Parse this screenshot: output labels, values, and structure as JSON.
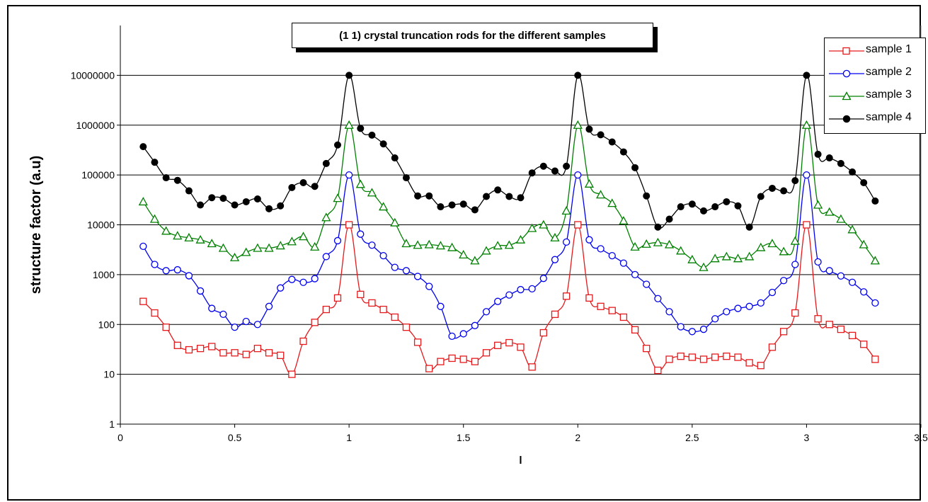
{
  "chart_data": {
    "type": "line",
    "title": "(1 1) crystal truncation rods for the different samples",
    "xlabel": "l",
    "ylabel": "structure factor (a.u)",
    "xlim": [
      0,
      3.5
    ],
    "ylim": [
      1,
      100000000
    ],
    "yscale": "log",
    "x_ticks": [
      "0",
      "0.5",
      "1",
      "1.5",
      "2",
      "2.5",
      "3",
      "3.5"
    ],
    "y_ticks": [
      "1",
      "10",
      "100",
      "1000",
      "10000",
      "100000",
      "1000000",
      "10000000"
    ],
    "grid": "horizontal",
    "legend_position": "top-right",
    "x": [
      0.1,
      0.15,
      0.2,
      0.25,
      0.3,
      0.35,
      0.4,
      0.45,
      0.5,
      0.55,
      0.6,
      0.65,
      0.7,
      0.75,
      0.8,
      0.85,
      0.9,
      0.95,
      1.0,
      1.05,
      1.1,
      1.15,
      1.2,
      1.25,
      1.3,
      1.35,
      1.4,
      1.45,
      1.5,
      1.55,
      1.6,
      1.65,
      1.7,
      1.75,
      1.8,
      1.85,
      1.9,
      1.95,
      2.0,
      2.05,
      2.1,
      2.15,
      2.2,
      2.25,
      2.3,
      2.35,
      2.4,
      2.45,
      2.5,
      2.55,
      2.6,
      2.65,
      2.7,
      2.75,
      2.8,
      2.85,
      2.9,
      2.95,
      3.0,
      3.05,
      3.1,
      3.15,
      3.2,
      3.25,
      3.3
    ],
    "series": [
      {
        "name": "sample 1",
        "color": "#e41a1c",
        "marker": "square",
        "values": [
          290,
          170,
          88,
          38,
          31,
          33,
          36,
          27,
          27,
          25,
          33,
          27,
          24,
          10,
          46,
          110,
          200,
          340,
          10000,
          400,
          270,
          200,
          140,
          88,
          44,
          13,
          18,
          21,
          20,
          18,
          27,
          38,
          43,
          35,
          14,
          68,
          160,
          370,
          10000,
          340,
          230,
          190,
          140,
          78,
          33,
          12,
          20,
          23,
          22,
          20,
          22,
          23,
          22,
          17,
          15,
          35,
          72,
          170,
          10000,
          130,
          100,
          80,
          60,
          40,
          20
        ]
      },
      {
        "name": "sample 2",
        "color": "#0000ee",
        "marker": "circle",
        "values": [
          3700,
          1600,
          1200,
          1250,
          950,
          470,
          210,
          160,
          88,
          115,
          100,
          230,
          540,
          800,
          700,
          830,
          2300,
          4800,
          100000,
          6500,
          3900,
          2400,
          1400,
          1200,
          920,
          580,
          230,
          58,
          65,
          95,
          180,
          290,
          390,
          500,
          520,
          840,
          2000,
          4500,
          100000,
          5000,
          3300,
          2400,
          1700,
          1000,
          640,
          330,
          180,
          90,
          72,
          80,
          130,
          180,
          210,
          230,
          270,
          440,
          760,
          1600,
          100000,
          1800,
          1200,
          940,
          700,
          450,
          270
        ]
      },
      {
        "name": "sample 3",
        "color": "#008000",
        "marker": "triangle",
        "values": [
          29000,
          13000,
          7500,
          6000,
          5500,
          5000,
          4200,
          3400,
          2200,
          2800,
          3400,
          3400,
          3800,
          4600,
          5800,
          3600,
          14000,
          34000,
          1000000,
          65000,
          44000,
          23000,
          11000,
          4200,
          3900,
          4000,
          3800,
          3500,
          2500,
          1900,
          3000,
          3800,
          3900,
          5000,
          8500,
          10000,
          5500,
          19000,
          1000000,
          66000,
          40000,
          27000,
          12000,
          3600,
          4100,
          4400,
          4000,
          3000,
          2000,
          1400,
          2100,
          2300,
          2100,
          2300,
          3500,
          4200,
          2900,
          4700,
          1000000,
          25000,
          18000,
          13000,
          8000,
          4000,
          1900
        ]
      },
      {
        "name": "sample 4",
        "color": "#000000",
        "marker": "dot",
        "values": [
          370000,
          180000,
          88000,
          78000,
          48000,
          25000,
          35000,
          34000,
          25000,
          29000,
          33000,
          21000,
          24000,
          56000,
          70000,
          59000,
          170000,
          400000,
          10000000,
          860000,
          630000,
          420000,
          220000,
          88000,
          38000,
          38000,
          23000,
          25000,
          26000,
          20000,
          37000,
          50000,
          37000,
          35000,
          110000,
          150000,
          120000,
          150000,
          10000000,
          830000,
          640000,
          460000,
          290000,
          140000,
          38000,
          9000,
          13000,
          23000,
          26000,
          19000,
          23000,
          29000,
          24000,
          9000,
          37000,
          54000,
          48000,
          77000,
          10000000,
          260000,
          220000,
          170000,
          115000,
          70000,
          30000
        ]
      }
    ]
  }
}
